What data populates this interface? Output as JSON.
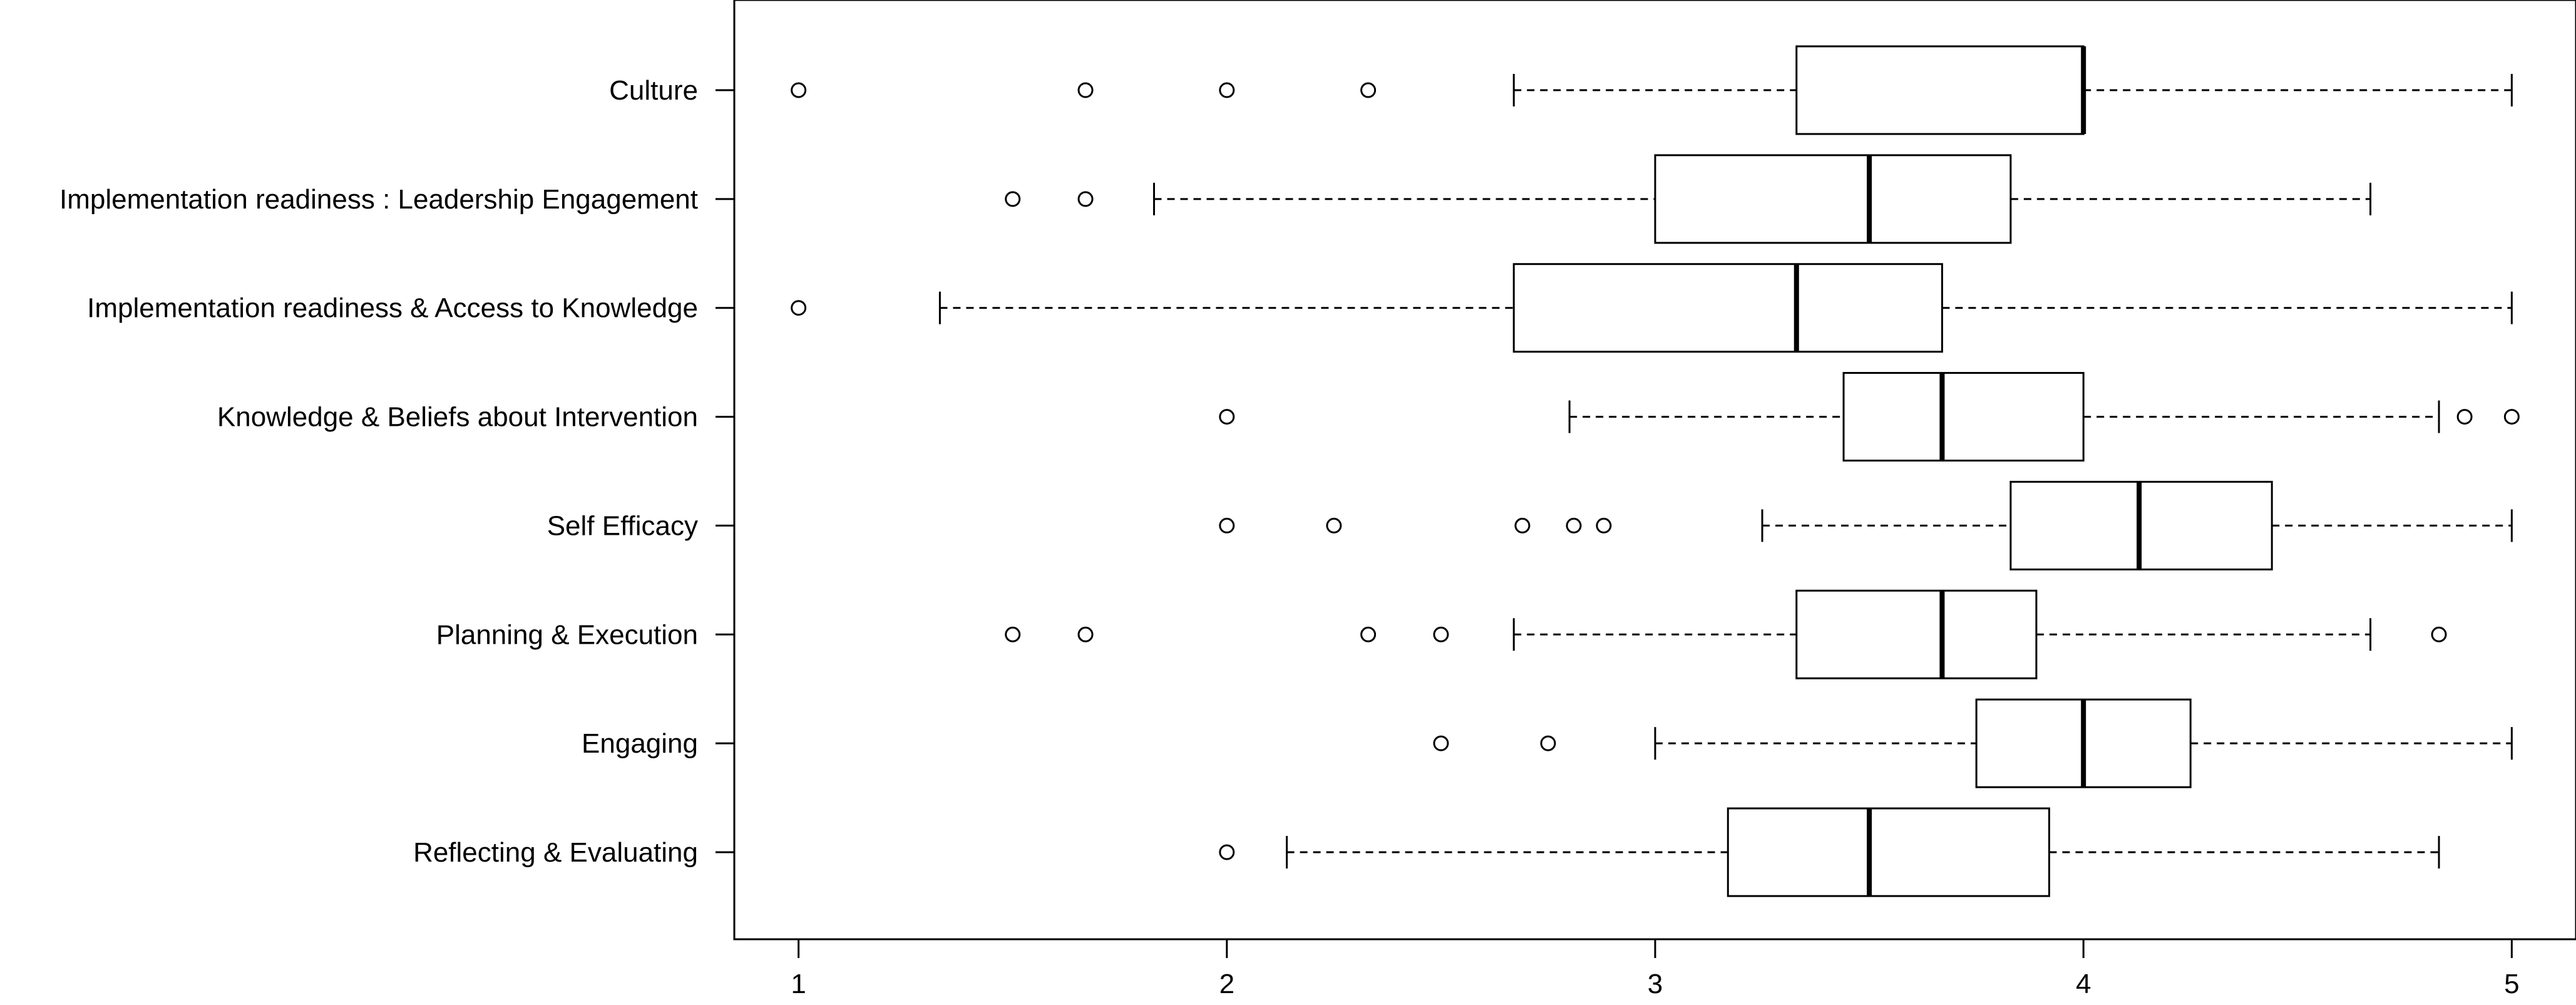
{
  "chart_data": {
    "type": "boxplot",
    "orientation": "horizontal",
    "title": "",
    "xlabel": "",
    "ylabel": "",
    "xlim": [
      0.85,
      5.15
    ],
    "x_ticks": [
      1,
      2,
      3,
      4,
      5
    ],
    "x_tick_labels": [
      "1",
      "2",
      "3",
      "4",
      "5"
    ],
    "grid": false,
    "legend": "none",
    "colors": {
      "stroke": "#000000",
      "box_fill": "#ffffff",
      "background": "#ffffff"
    },
    "categories": [
      "Culture",
      "Implementation readiness : Leadership Engagement",
      "Implementation readiness & Access to Knowledge",
      "Knowledge & Beliefs about Intervention",
      "Self Efficacy",
      "Planning & Execution",
      "Engaging",
      "Reflecting & Evaluating"
    ],
    "boxes": [
      {
        "name": "Culture",
        "whisker_low": 2.67,
        "q1": 3.33,
        "median": 4.0,
        "q3": 4.0,
        "whisker_high": 5.0,
        "outliers": [
          1.0,
          1.67,
          2.0,
          2.33
        ]
      },
      {
        "name": "Implementation readiness : Leadership Engagement",
        "whisker_low": 1.83,
        "q1": 3.0,
        "median": 3.5,
        "q3": 3.83,
        "whisker_high": 4.67,
        "outliers": [
          1.5,
          1.67
        ]
      },
      {
        "name": "Implementation readiness & Access to Knowledge",
        "whisker_low": 1.33,
        "q1": 2.67,
        "median": 3.33,
        "q3": 3.67,
        "whisker_high": 5.0,
        "outliers": [
          1.0
        ]
      },
      {
        "name": "Knowledge & Beliefs about Intervention",
        "whisker_low": 2.8,
        "q1": 3.44,
        "median": 3.67,
        "q3": 4.0,
        "whisker_high": 4.83,
        "outliers": [
          2.0,
          4.89,
          5.0
        ]
      },
      {
        "name": "Self Efficacy",
        "whisker_low": 3.25,
        "q1": 3.83,
        "median": 4.13,
        "q3": 4.44,
        "whisker_high": 5.0,
        "outliers": [
          2.0,
          2.25,
          2.69,
          2.81,
          2.88
        ]
      },
      {
        "name": "Planning & Execution",
        "whisker_low": 2.67,
        "q1": 3.33,
        "median": 3.67,
        "q3": 3.89,
        "whisker_high": 4.67,
        "outliers": [
          1.5,
          1.67,
          2.33,
          2.5,
          4.83
        ]
      },
      {
        "name": "Engaging",
        "whisker_low": 3.0,
        "q1": 3.75,
        "median": 4.0,
        "q3": 4.25,
        "whisker_high": 5.0,
        "outliers": [
          2.5,
          2.75
        ]
      },
      {
        "name": "Reflecting & Evaluating",
        "whisker_low": 2.14,
        "q1": 3.17,
        "median": 3.5,
        "q3": 3.92,
        "whisker_high": 4.83,
        "outliers": [
          2.0
        ]
      }
    ]
  }
}
